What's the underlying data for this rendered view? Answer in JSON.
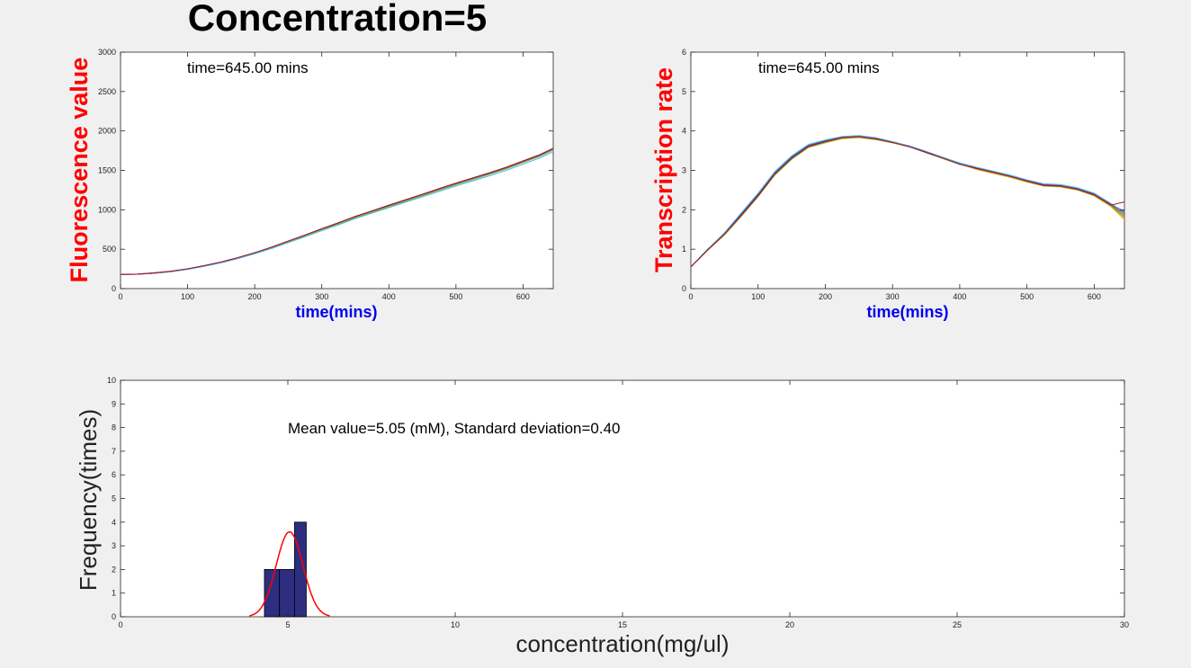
{
  "figure": {
    "title": "Concentration=5"
  },
  "chart_data": [
    {
      "type": "line",
      "title": "",
      "annotation": "time=645.00 mins",
      "xlabel": "time(mins)",
      "ylabel": "Fluorescence value",
      "xlim": [
        0,
        645
      ],
      "ylim": [
        0,
        3000
      ],
      "xticks": [
        0,
        100,
        200,
        300,
        400,
        500,
        600
      ],
      "yticks": [
        0,
        500,
        1000,
        1500,
        2000,
        2500,
        3000
      ],
      "x": [
        0,
        25,
        50,
        75,
        100,
        125,
        150,
        175,
        200,
        225,
        250,
        275,
        300,
        325,
        350,
        375,
        400,
        425,
        450,
        475,
        500,
        525,
        550,
        575,
        600,
        625,
        645
      ],
      "series": [
        {
          "color": "#0072BD",
          "values": [
            180,
            182,
            195,
            215,
            245,
            285,
            330,
            385,
            445,
            515,
            590,
            665,
            745,
            820,
            900,
            970,
            1040,
            1110,
            1180,
            1250,
            1320,
            1385,
            1450,
            1520,
            1600,
            1680,
            1760
          ]
        },
        {
          "color": "#D95319",
          "values": [
            180,
            183,
            197,
            217,
            248,
            288,
            333,
            388,
            448,
            518,
            595,
            670,
            750,
            825,
            905,
            975,
            1045,
            1115,
            1185,
            1255,
            1325,
            1390,
            1455,
            1525,
            1605,
            1685,
            1765
          ]
        },
        {
          "color": "#EDB120",
          "values": [
            180,
            182,
            196,
            216,
            246,
            286,
            331,
            386,
            446,
            516,
            592,
            667,
            747,
            822,
            902,
            972,
            1042,
            1112,
            1182,
            1252,
            1322,
            1387,
            1452,
            1522,
            1602,
            1682,
            1762
          ]
        },
        {
          "color": "#7E2F8E",
          "values": [
            180,
            184,
            198,
            219,
            250,
            291,
            337,
            392,
            453,
            523,
            600,
            676,
            756,
            832,
            912,
            982,
            1052,
            1122,
            1192,
            1262,
            1332,
            1398,
            1463,
            1533,
            1613,
            1693,
            1773
          ]
        },
        {
          "color": "#77AC30",
          "values": [
            180,
            183,
            196,
            217,
            247,
            287,
            332,
            387,
            447,
            517,
            593,
            668,
            748,
            823,
            903,
            973,
            1043,
            1113,
            1183,
            1253,
            1323,
            1388,
            1453,
            1523,
            1603,
            1683,
            1763
          ]
        },
        {
          "color": "#4DBEEE",
          "values": [
            180,
            182,
            194,
            214,
            244,
            283,
            327,
            381,
            440,
            508,
            583,
            657,
            736,
            810,
            889,
            958,
            1027,
            1096,
            1165,
            1234,
            1303,
            1367,
            1431,
            1500,
            1579,
            1658,
            1737
          ]
        },
        {
          "color": "#A2142F",
          "values": [
            180,
            184,
            199,
            220,
            251,
            292,
            338,
            394,
            455,
            526,
            603,
            680,
            760,
            836,
            916,
            987,
            1058,
            1128,
            1198,
            1268,
            1338,
            1404,
            1470,
            1540,
            1620,
            1700,
            1780
          ]
        }
      ]
    },
    {
      "type": "line",
      "title": "",
      "annotation": "time=645.00 mins",
      "xlabel": "time(mins)",
      "ylabel": "Transcription rate",
      "xlim": [
        0,
        645
      ],
      "ylim": [
        0,
        6
      ],
      "xticks": [
        0,
        100,
        200,
        300,
        400,
        500,
        600
      ],
      "yticks": [
        0,
        1,
        2,
        3,
        4,
        5,
        6
      ],
      "x": [
        0,
        25,
        50,
        75,
        100,
        125,
        150,
        175,
        200,
        225,
        250,
        275,
        300,
        325,
        350,
        375,
        400,
        425,
        450,
        475,
        500,
        525,
        550,
        575,
        600,
        625,
        645
      ],
      "series": [
        {
          "color": "#0072BD",
          "values": [
            0.55,
            1.0,
            1.4,
            1.9,
            2.4,
            2.95,
            3.35,
            3.65,
            3.75,
            3.85,
            3.88,
            3.82,
            3.7,
            3.6,
            3.45,
            3.3,
            3.15,
            3.05,
            2.95,
            2.85,
            2.72,
            2.62,
            2.6,
            2.55,
            2.4,
            2.15,
            1.95
          ]
        },
        {
          "color": "#D95319",
          "values": [
            0.55,
            0.98,
            1.38,
            1.85,
            2.35,
            2.9,
            3.3,
            3.6,
            3.72,
            3.83,
            3.85,
            3.8,
            3.72,
            3.62,
            3.48,
            3.33,
            3.18,
            3.07,
            2.97,
            2.87,
            2.75,
            2.64,
            2.62,
            2.52,
            2.38,
            2.12,
            1.85
          ]
        },
        {
          "color": "#EDB120",
          "values": [
            0.55,
            0.97,
            1.36,
            1.83,
            2.33,
            2.88,
            3.28,
            3.58,
            3.7,
            3.8,
            3.83,
            3.78,
            3.7,
            3.6,
            3.46,
            3.3,
            3.16,
            3.02,
            2.92,
            2.82,
            2.7,
            2.6,
            2.58,
            2.5,
            2.35,
            2.08,
            1.75
          ]
        },
        {
          "color": "#7E2F8E",
          "values": [
            0.55,
            0.99,
            1.39,
            1.87,
            2.37,
            2.92,
            3.32,
            3.62,
            3.74,
            3.84,
            3.86,
            3.81,
            3.72,
            3.61,
            3.47,
            3.32,
            3.17,
            3.06,
            2.96,
            2.86,
            2.74,
            2.63,
            2.61,
            2.53,
            2.39,
            2.14,
            1.9
          ]
        },
        {
          "color": "#77AC30",
          "values": [
            0.55,
            0.98,
            1.37,
            1.84,
            2.34,
            2.89,
            3.29,
            3.59,
            3.71,
            3.82,
            3.84,
            3.79,
            3.71,
            3.61,
            3.47,
            3.31,
            3.17,
            3.04,
            2.94,
            2.84,
            2.72,
            2.61,
            2.59,
            2.51,
            2.37,
            2.1,
            1.8
          ]
        },
        {
          "color": "#4DBEEE",
          "values": [
            0.55,
            1.0,
            1.42,
            1.92,
            2.42,
            2.97,
            3.37,
            3.66,
            3.77,
            3.86,
            3.88,
            3.83,
            3.73,
            3.62,
            3.48,
            3.33,
            3.19,
            3.08,
            2.98,
            2.88,
            2.76,
            2.66,
            2.64,
            2.56,
            2.42,
            2.16,
            1.92
          ]
        },
        {
          "color": "#A2142F",
          "values": [
            0.55,
            0.98,
            1.38,
            1.86,
            2.36,
            2.91,
            3.31,
            3.61,
            3.73,
            3.83,
            3.86,
            3.8,
            3.71,
            3.6,
            3.46,
            3.31,
            3.16,
            3.05,
            2.95,
            2.85,
            2.73,
            2.62,
            2.6,
            2.52,
            2.38,
            2.12,
            2.2
          ]
        }
      ]
    },
    {
      "type": "bar",
      "title": "",
      "annotation": "Mean value=5.05 (mM), Standard deviation=0.40",
      "xlabel": "concentration(mg/ul)",
      "ylabel": "Frequency(times)",
      "xlim": [
        0,
        30
      ],
      "ylim": [
        0,
        10
      ],
      "xticks": [
        0,
        5,
        10,
        15,
        20,
        25,
        30
      ],
      "yticks": [
        0,
        1,
        2,
        3,
        4,
        5,
        6,
        7,
        8,
        9,
        10
      ],
      "bins": [
        {
          "x0": 4.3,
          "x1": 4.75,
          "count": 2
        },
        {
          "x0": 4.75,
          "x1": 5.2,
          "count": 2
        },
        {
          "x0": 5.2,
          "x1": 5.55,
          "count": 4
        }
      ],
      "bar_color": "#2e2e80",
      "fit": {
        "type": "normal",
        "mean": 5.05,
        "sd": 0.4,
        "color": "#ff0000"
      }
    }
  ]
}
